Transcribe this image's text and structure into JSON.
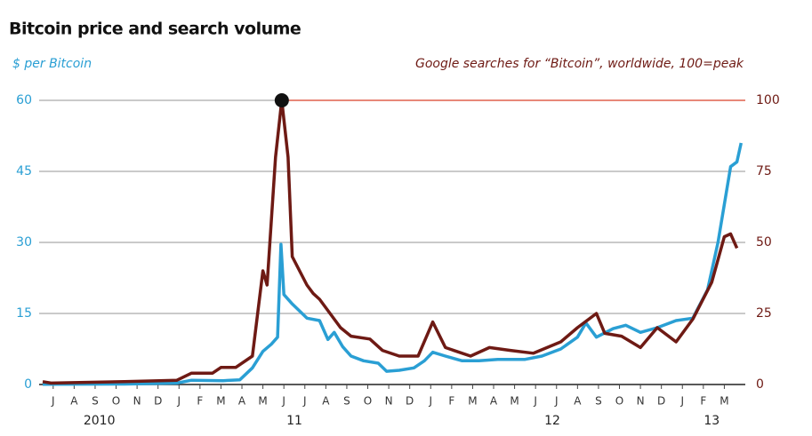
{
  "chart_data": {
    "type": "line",
    "title": "Bitcoin price and search volume",
    "y_label": "$ per Bitcoin",
    "y2_label": "Google searches for “Bitcoin”, worldwide, 100=peak",
    "xlim": [
      0,
      33.5
    ],
    "xticks": [
      {
        "value": 0.5,
        "label": "J"
      },
      {
        "value": 1.5,
        "label": "A"
      },
      {
        "value": 2.5,
        "label": "S"
      },
      {
        "value": 3.5,
        "label": "O"
      },
      {
        "value": 4.5,
        "label": "N"
      },
      {
        "value": 5.5,
        "label": "D"
      },
      {
        "value": 6.5,
        "label": "J"
      },
      {
        "value": 7.5,
        "label": "F"
      },
      {
        "value": 8.5,
        "label": "M"
      },
      {
        "value": 9.5,
        "label": "A"
      },
      {
        "value": 10.5,
        "label": "M"
      },
      {
        "value": 11.5,
        "label": "J"
      },
      {
        "value": 12.5,
        "label": "J"
      },
      {
        "value": 13.5,
        "label": "A"
      },
      {
        "value": 14.5,
        "label": "S"
      },
      {
        "value": 15.5,
        "label": "O"
      },
      {
        "value": 16.5,
        "label": "N"
      },
      {
        "value": 17.5,
        "label": "D"
      },
      {
        "value": 18.5,
        "label": "J"
      },
      {
        "value": 19.5,
        "label": "F"
      },
      {
        "value": 20.5,
        "label": "M"
      },
      {
        "value": 21.5,
        "label": "A"
      },
      {
        "value": 22.5,
        "label": "M"
      },
      {
        "value": 23.5,
        "label": "J"
      },
      {
        "value": 24.5,
        "label": "J"
      },
      {
        "value": 25.5,
        "label": "A"
      },
      {
        "value": 26.5,
        "label": "S"
      },
      {
        "value": 27.5,
        "label": "O"
      },
      {
        "value": 28.5,
        "label": "N"
      },
      {
        "value": 29.5,
        "label": "D"
      },
      {
        "value": 30.5,
        "label": "J"
      },
      {
        "value": 31.5,
        "label": "F"
      },
      {
        "value": 32.5,
        "label": "M"
      }
    ],
    "year_labels": [
      {
        "value": 2.7,
        "label": "2010"
      },
      {
        "value": 12,
        "label": "11"
      },
      {
        "value": 24.3,
        "label": "12"
      },
      {
        "value": 31.9,
        "label": "13"
      }
    ],
    "ylim": [
      0,
      60
    ],
    "yticks": [
      0,
      15,
      30,
      45,
      60
    ],
    "y2lim": [
      0,
      100
    ],
    "y2ticks": [
      0,
      25,
      50,
      75,
      100
    ],
    "grid": true,
    "series": [
      {
        "name": "$ per Bitcoin",
        "color": "#2a9fd4",
        "x": [
          0,
          3.9,
          6.4,
          7.1,
          8.6,
          9.4,
          10.0,
          10.5,
          10.9,
          11.2,
          11.36,
          11.5,
          11.9,
          12.6,
          13.2,
          13.6,
          13.9,
          14.3,
          14.7,
          15.3,
          16.0,
          16.4,
          17.0,
          17.7,
          18.2,
          18.6,
          19.2,
          20.0,
          20.8,
          21.7,
          23.0,
          23.8,
          24.7,
          25.5,
          25.9,
          26.4,
          27.2,
          27.8,
          28.5,
          29.3,
          30.2,
          31.0,
          31.7,
          32.2,
          32.5,
          32.8,
          33.1,
          33.3
        ],
        "values": [
          0.05,
          0.1,
          0.3,
          0.9,
          0.8,
          1.0,
          3.5,
          7,
          8.5,
          10,
          29.6,
          19,
          17,
          14,
          13.5,
          9.5,
          11,
          8,
          6,
          5,
          4.5,
          2.8,
          3,
          3.5,
          5,
          6.8,
          6,
          5,
          5,
          5.3,
          5.3,
          6,
          7.5,
          10,
          13,
          10,
          11.8,
          12.5,
          11,
          12,
          13.5,
          14,
          20,
          30,
          38,
          46,
          47,
          51
        ]
      },
      {
        "name": "Google searches for “Bitcoin”, worldwide, 100=peak",
        "color": "#6e1a14",
        "axis": "y2",
        "x": [
          0,
          0.4,
          3.9,
          6.4,
          7.1,
          8.1,
          8.5,
          9.2,
          10.0,
          10.5,
          10.7,
          11.1,
          11.4,
          11.7,
          11.9,
          12.6,
          12.9,
          13.2,
          13.7,
          14.2,
          14.7,
          15.6,
          16.2,
          17.0,
          17.9,
          18.6,
          19.2,
          20.4,
          21.3,
          22.3,
          23.4,
          24.7,
          25.5,
          26.4,
          26.8,
          27.6,
          28.5,
          29.3,
          30.2,
          31.0,
          31.9,
          32.5,
          32.8,
          33.1
        ],
        "values": [
          1,
          0.5,
          1,
          1.5,
          4,
          4,
          6,
          6,
          10,
          40,
          35,
          80,
          100,
          80,
          45,
          35,
          32,
          30,
          25,
          20,
          17,
          16,
          12,
          10,
          10,
          22,
          13,
          10,
          13,
          12,
          11,
          15,
          20,
          25,
          18,
          17,
          13,
          20,
          15,
          23,
          36,
          52,
          53,
          48
        ]
      }
    ]
  }
}
